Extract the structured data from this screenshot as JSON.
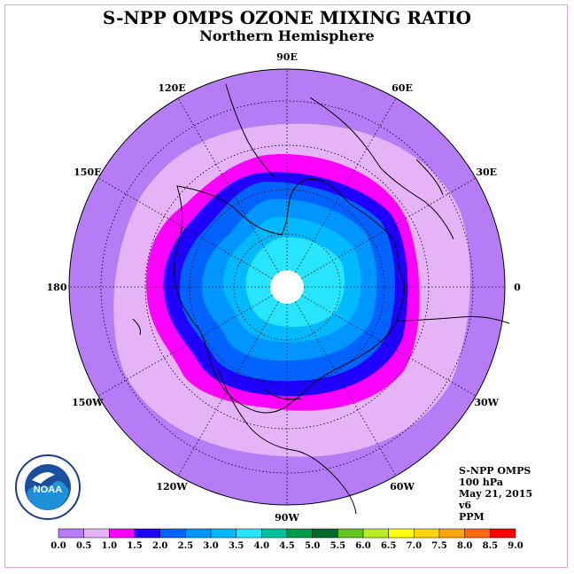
{
  "title": "S-NPP OMPS OZONE MIXING RATIO",
  "subtitle": "Northern Hemisphere",
  "info": {
    "instrument": "S-NPP OMPS",
    "level": "100 hPa",
    "date": "May 21, 2015",
    "version": "v6",
    "units": "PPM"
  },
  "logo_text": "NOAA",
  "longitude_labels": [
    "0",
    "30E",
    "60E",
    "90E",
    "120E",
    "150E",
    "180",
    "150W",
    "120W",
    "90W",
    "60W",
    "30W"
  ],
  "colorbar": {
    "ticks": [
      "0.0",
      "0.5",
      "1.0",
      "1.5",
      "2.0",
      "2.5",
      "3.0",
      "3.5",
      "4.0",
      "4.5",
      "5.0",
      "5.5",
      "6.0",
      "6.5",
      "7.0",
      "7.5",
      "8.0",
      "8.5",
      "9.0"
    ],
    "colors": [
      "#b57cf6",
      "#e5b3f6",
      "#fe00fd",
      "#1f00ff",
      "#0063ff",
      "#0095ff",
      "#00b9ff",
      "#27e5ff",
      "#00c29a",
      "#009a48",
      "#006a28",
      "#62c61c",
      "#b8ec26",
      "#ffff0a",
      "#ffd30e",
      "#ffa40d",
      "#ff6710",
      "#ff0000",
      "#8a5a3c"
    ]
  },
  "map": {
    "ring_colors": [
      "#b57cf6",
      "#e5b3f6",
      "#fe00fd",
      "#1f00ff",
      "#0063ff",
      "#0095ff",
      "#00b9ff",
      "#27e5ff"
    ],
    "polar_cap_color": "#ffffff"
  }
}
